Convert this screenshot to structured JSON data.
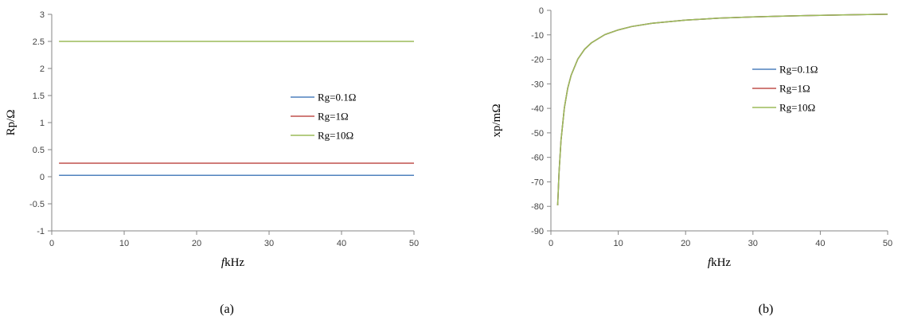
{
  "chart_data": [
    {
      "panel_label": "(a)",
      "type": "line",
      "xlabel_italic": "f",
      "xlabel": "kHz",
      "ylabel": "Rp/Ω",
      "xlim": [
        0,
        50
      ],
      "ylim": [
        -1,
        3
      ],
      "xticks": [
        0,
        10,
        20,
        30,
        40,
        50
      ],
      "yticks": [
        -1,
        -0.5,
        0,
        0.5,
        1,
        1.5,
        2,
        2.5,
        3
      ],
      "grid": false,
      "legend_placement": "center-right",
      "series": [
        {
          "name": "Rg=0.1Ω",
          "color": "#4F81BD",
          "x": [
            1,
            50
          ],
          "y": [
            0.025,
            0.025
          ]
        },
        {
          "name": "Rg=1Ω",
          "color": "#C0504D",
          "x": [
            1,
            50
          ],
          "y": [
            0.25,
            0.25
          ]
        },
        {
          "name": "Rg=10Ω",
          "color": "#9BBB59",
          "x": [
            1,
            50
          ],
          "y": [
            2.5,
            2.5
          ]
        }
      ]
    },
    {
      "panel_label": "(b)",
      "type": "line",
      "xlabel_italic": "f",
      "xlabel": "kHz",
      "ylabel": "xp/mΩ",
      "xlim": [
        0,
        50
      ],
      "ylim": [
        -90,
        0
      ],
      "xticks": [
        0,
        10,
        20,
        30,
        40,
        50
      ],
      "yticks": [
        -90,
        -80,
        -70,
        -60,
        -50,
        -40,
        -30,
        -20,
        -10,
        0
      ],
      "grid": false,
      "legend_placement": "upper-right",
      "series": [
        {
          "name": "Rg=0.1Ω",
          "color": "#4F81BD",
          "x": [
            1,
            1.2,
            1.5,
            2,
            2.5,
            3,
            4,
            5,
            6,
            8,
            10,
            12,
            15,
            20,
            25,
            30,
            35,
            40,
            45,
            50
          ],
          "y": [
            -79.6,
            -66.3,
            -53.1,
            -39.8,
            -31.8,
            -26.5,
            -19.9,
            -15.9,
            -13.3,
            -9.9,
            -8.0,
            -6.6,
            -5.3,
            -4.0,
            -3.2,
            -2.7,
            -2.3,
            -2.0,
            -1.8,
            -1.6
          ]
        },
        {
          "name": "Rg=1Ω",
          "color": "#C0504D",
          "x": [
            1,
            1.2,
            1.5,
            2,
            2.5,
            3,
            4,
            5,
            6,
            8,
            10,
            12,
            15,
            20,
            25,
            30,
            35,
            40,
            45,
            50
          ],
          "y": [
            -79.6,
            -66.3,
            -53.1,
            -39.8,
            -31.8,
            -26.5,
            -19.9,
            -15.9,
            -13.3,
            -9.9,
            -8.0,
            -6.6,
            -5.3,
            -4.0,
            -3.2,
            -2.7,
            -2.3,
            -2.0,
            -1.8,
            -1.6
          ]
        },
        {
          "name": "Rg=10Ω",
          "color": "#9BBB59",
          "x": [
            1,
            1.2,
            1.5,
            2,
            2.5,
            3,
            4,
            5,
            6,
            8,
            10,
            12,
            15,
            20,
            25,
            30,
            35,
            40,
            45,
            50
          ],
          "y": [
            -79.6,
            -66.3,
            -53.1,
            -39.8,
            -31.8,
            -26.5,
            -19.9,
            -15.9,
            -13.3,
            -9.9,
            -8.0,
            -6.6,
            -5.3,
            -4.0,
            -3.2,
            -2.7,
            -2.3,
            -2.0,
            -1.8,
            -1.6
          ]
        }
      ]
    }
  ]
}
